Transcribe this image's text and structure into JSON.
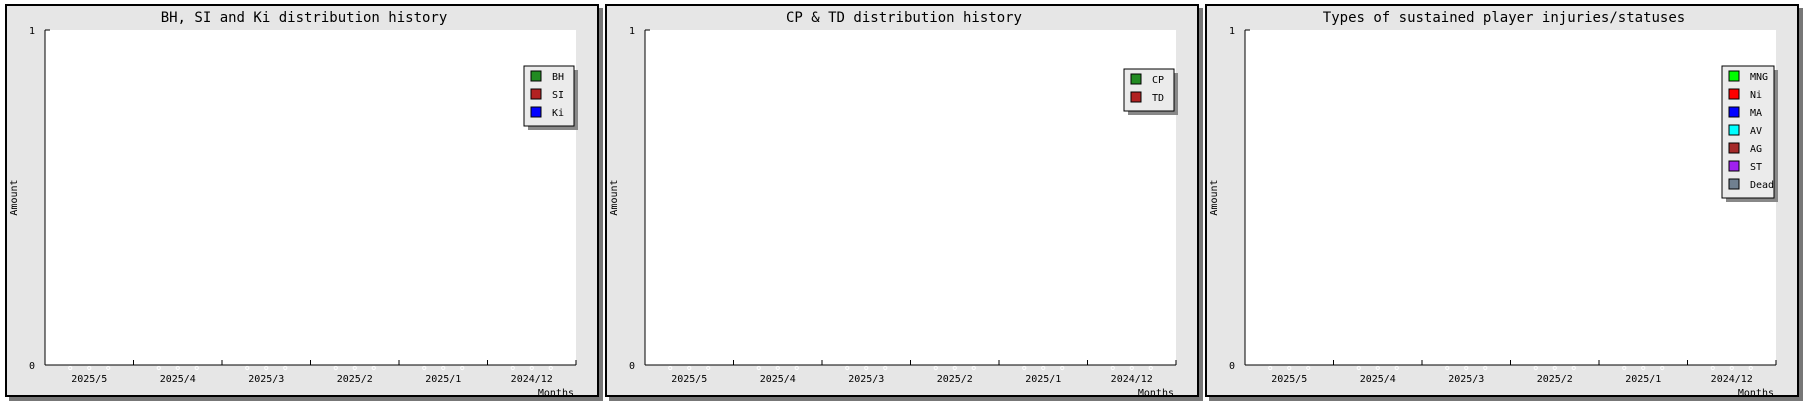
{
  "chart_data": [
    {
      "type": "line",
      "title": "BH, SI and Ki distribution history",
      "xlabel": "Months",
      "ylabel": "Amount",
      "categories": [
        "2025/5",
        "2025/4",
        "2025/3",
        "2025/2",
        "2025/1",
        "2024/12"
      ],
      "ylim": [
        0,
        1
      ],
      "yticks": [
        "0",
        "1"
      ],
      "legend_position": "top-right",
      "series": [
        {
          "name": "BH",
          "color": "#228b22",
          "values": [
            0,
            0,
            0,
            0,
            0,
            0
          ]
        },
        {
          "name": "SI",
          "color": "#b22222",
          "values": [
            0,
            0,
            0,
            0,
            0,
            0
          ]
        },
        {
          "name": "Ki",
          "color": "#0000ff",
          "values": [
            0,
            0,
            0,
            0,
            0,
            0
          ]
        }
      ]
    },
    {
      "type": "line",
      "title": "CP & TD distribution history",
      "xlabel": "Months",
      "ylabel": "Amount",
      "categories": [
        "2025/5",
        "2025/4",
        "2025/3",
        "2025/2",
        "2025/1",
        "2024/12"
      ],
      "ylim": [
        0,
        1
      ],
      "yticks": [
        "0",
        "1"
      ],
      "legend_position": "top-right",
      "series": [
        {
          "name": "CP",
          "color": "#228b22",
          "values": [
            0,
            0,
            0,
            0,
            0,
            0
          ]
        },
        {
          "name": "TD",
          "color": "#b22222",
          "values": [
            0,
            0,
            0,
            0,
            0,
            0
          ]
        }
      ]
    },
    {
      "type": "line",
      "title": "Types of sustained player injuries/statuses",
      "xlabel": "Months",
      "ylabel": "Amount",
      "categories": [
        "2025/5",
        "2025/4",
        "2025/3",
        "2025/2",
        "2025/1",
        "2024/12"
      ],
      "ylim": [
        0,
        1
      ],
      "yticks": [
        "0",
        "1"
      ],
      "legend_position": "top-right",
      "series": [
        {
          "name": "MNG",
          "color": "#00ff00",
          "values": [
            0,
            0,
            0,
            0,
            0,
            0
          ]
        },
        {
          "name": "Ni",
          "color": "#ff0000",
          "values": [
            0,
            0,
            0,
            0,
            0,
            0
          ]
        },
        {
          "name": "MA",
          "color": "#0000ff",
          "values": [
            0,
            0,
            0,
            0,
            0,
            0
          ]
        },
        {
          "name": "AV",
          "color": "#00ffff",
          "values": [
            0,
            0,
            0,
            0,
            0,
            0
          ]
        },
        {
          "name": "AG",
          "color": "#a52a2a",
          "values": [
            0,
            0,
            0,
            0,
            0,
            0
          ]
        },
        {
          "name": "ST",
          "color": "#a020f0",
          "values": [
            0,
            0,
            0,
            0,
            0,
            0
          ]
        },
        {
          "name": "Dead",
          "color": "#708090",
          "values": [
            0,
            0,
            0,
            0,
            0,
            0
          ]
        }
      ]
    }
  ]
}
